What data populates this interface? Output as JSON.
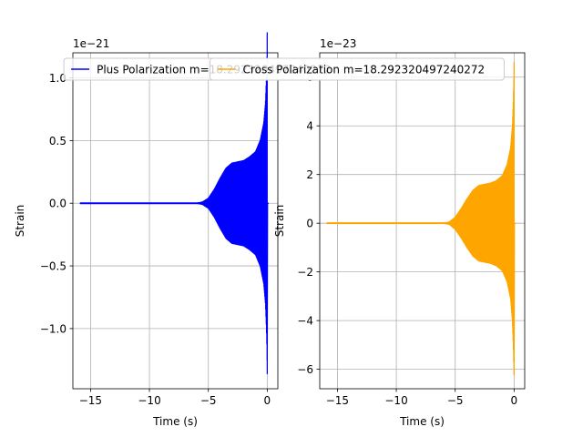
{
  "chart_data": [
    {
      "type": "line",
      "series": [
        {
          "name": "Plus Polarization m=18.292320497240272",
          "color": "#0000ff"
        }
      ],
      "xlabel": "Time (s)",
      "ylabel": "Strain",
      "offset_label": "1e−21",
      "xlim": [
        -16.5,
        0.9
      ],
      "ylim": [
        -1.48,
        1.2
      ],
      "x_ticks": [
        -15,
        -10,
        -5,
        0
      ],
      "x_tick_labels": [
        "−15",
        "−10",
        "−5",
        "0"
      ],
      "y_ticks": [
        -1.0,
        -0.5,
        0.0,
        0.5,
        1.0
      ],
      "y_tick_labels": [
        "−1.0",
        "−0.5",
        "0.0",
        "0.5",
        "1.0"
      ],
      "grid": true,
      "legend_placement": "top",
      "signal_start": -15.9,
      "envelope": [
        [
          -15.9,
          0.0
        ],
        [
          -6.0,
          0.0
        ],
        [
          -5.5,
          0.01
        ],
        [
          -5.0,
          0.04
        ],
        [
          -4.5,
          0.11
        ],
        [
          -4.0,
          0.2
        ],
        [
          -3.5,
          0.28
        ],
        [
          -3.0,
          0.32
        ],
        [
          -2.5,
          0.33
        ],
        [
          -2.0,
          0.34
        ],
        [
          -1.5,
          0.37
        ],
        [
          -1.0,
          0.41
        ],
        [
          -0.6,
          0.5
        ],
        [
          -0.3,
          0.64
        ],
        [
          -0.15,
          0.8
        ],
        [
          -0.07,
          1.0
        ],
        [
          -0.02,
          1.18
        ],
        [
          0.0,
          1.36
        ],
        [
          0.05,
          0.1
        ],
        [
          0.1,
          0.0
        ]
      ],
      "envelope_min_tip": -1.36
    },
    {
      "type": "line",
      "series": [
        {
          "name": "Cross Polarization m=18.292320497240272",
          "color": "#ffa500"
        }
      ],
      "xlabel": "Time (s)",
      "ylabel": "Strain",
      "offset_label": "1e−23",
      "xlim": [
        -16.5,
        0.9
      ],
      "ylim": [
        -6.8,
        7.0
      ],
      "x_ticks": [
        -15,
        -10,
        -5,
        0
      ],
      "x_tick_labels": [
        "−15",
        "−10",
        "−5",
        "0"
      ],
      "y_ticks": [
        -6,
        -4,
        -2,
        0,
        2,
        4,
        6
      ],
      "y_tick_labels": [
        "−6",
        "−4",
        "−2",
        "0",
        "2",
        "4",
        "6"
      ],
      "grid": true,
      "legend_placement": "top",
      "signal_start": -15.9,
      "envelope": [
        [
          -15.9,
          0.0
        ],
        [
          -6.0,
          0.0
        ],
        [
          -5.5,
          0.05
        ],
        [
          -5.0,
          0.25
        ],
        [
          -4.5,
          0.6
        ],
        [
          -4.0,
          1.0
        ],
        [
          -3.5,
          1.35
        ],
        [
          -3.0,
          1.55
        ],
        [
          -2.5,
          1.6
        ],
        [
          -2.0,
          1.65
        ],
        [
          -1.5,
          1.75
        ],
        [
          -1.0,
          1.95
        ],
        [
          -0.6,
          2.4
        ],
        [
          -0.3,
          3.1
        ],
        [
          -0.15,
          4.0
        ],
        [
          -0.07,
          5.0
        ],
        [
          -0.02,
          6.0
        ],
        [
          0.0,
          6.6
        ],
        [
          0.05,
          0.3
        ],
        [
          0.1,
          0.0
        ]
      ],
      "envelope_min_tip": -6.2
    }
  ]
}
